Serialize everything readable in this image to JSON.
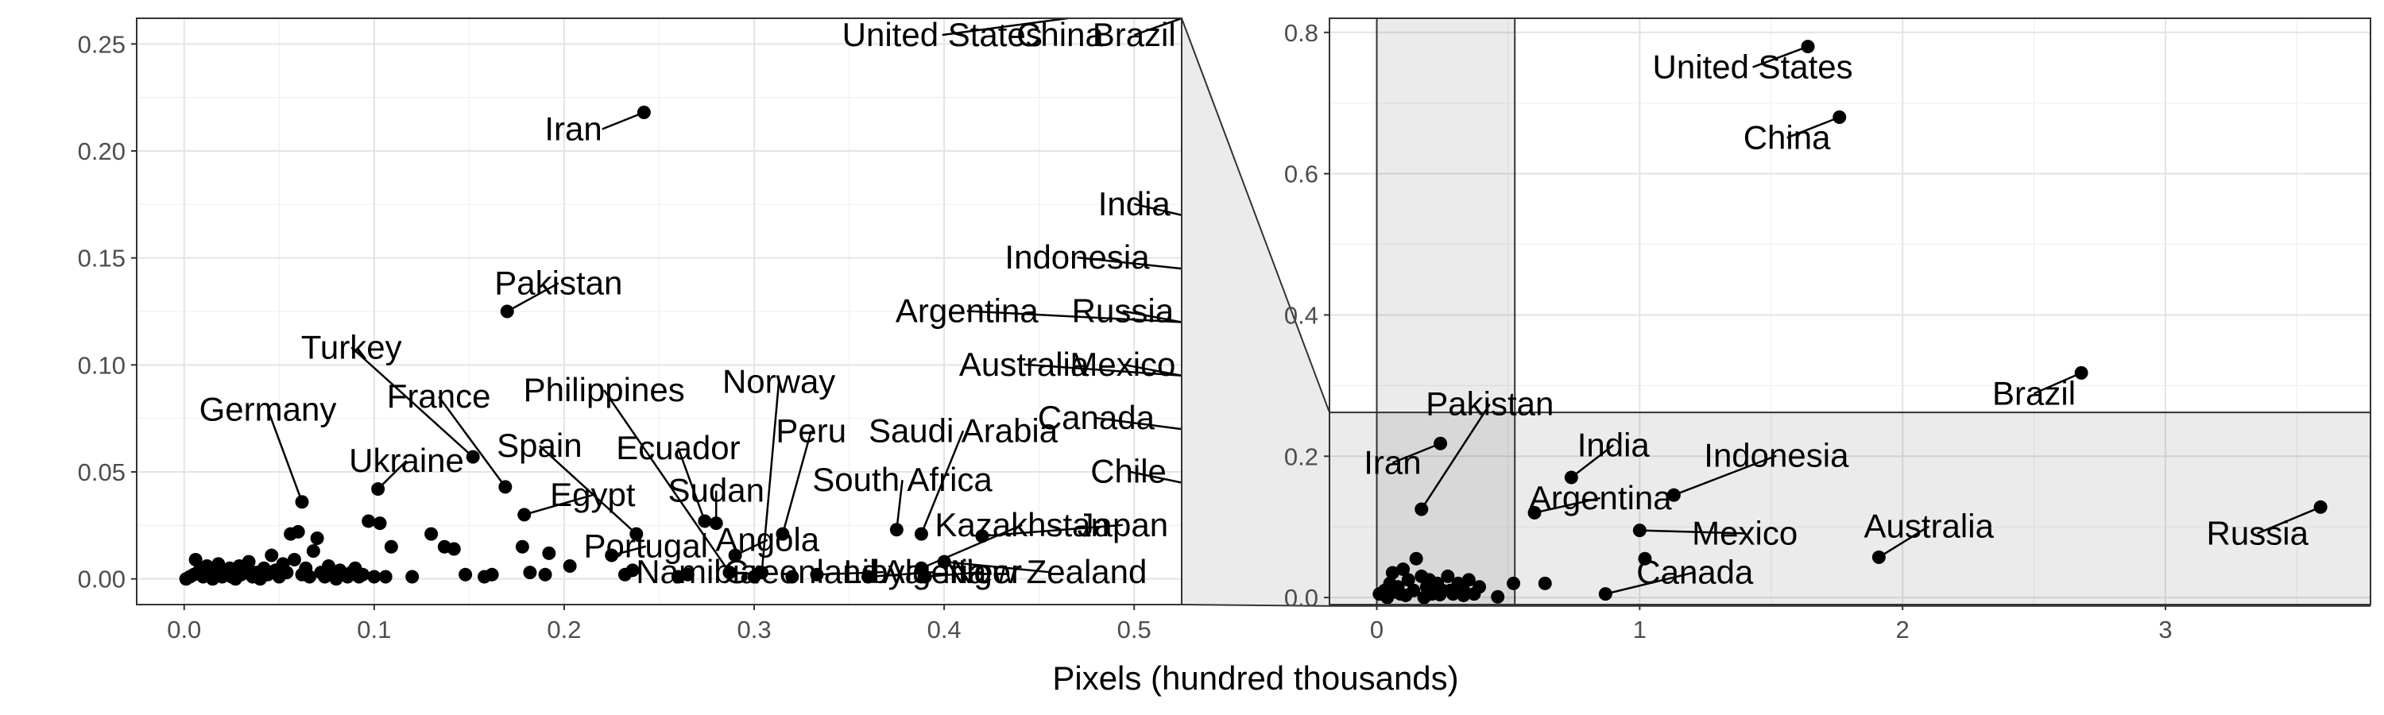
{
  "chart_data": [
    {
      "type": "scatter",
      "panel": "left (zoomed inset)",
      "title": "",
      "xlabel": "Pixels (hundred thousands)",
      "ylabel": "",
      "xlim": [
        -0.025,
        0.525
      ],
      "ylim": [
        -0.012,
        0.262
      ],
      "x_ticks": [
        "0.0",
        "0.1",
        "0.2",
        "0.3",
        "0.4",
        "0.5"
      ],
      "y_ticks": [
        "0.00",
        "0.05",
        "0.10",
        "0.15",
        "0.20",
        "0.25"
      ],
      "grid": true,
      "background": "#ffffff",
      "point_color": "#000000",
      "labeled_points": [
        {
          "label": "Iran",
          "x": 0.242,
          "y": 0.218,
          "tx": 0.22,
          "ty": 0.205,
          "anchor": "end"
        },
        {
          "label": "Pakistan",
          "x": 0.17,
          "y": 0.125,
          "tx": 0.197,
          "ty": 0.133,
          "anchor": "middle"
        },
        {
          "label": "Turkey",
          "x": 0.152,
          "y": 0.057,
          "tx": 0.088,
          "ty": 0.103,
          "anchor": "middle"
        },
        {
          "label": "France",
          "x": 0.169,
          "y": 0.043,
          "tx": 0.134,
          "ty": 0.08,
          "anchor": "middle"
        },
        {
          "label": "Germany",
          "x": 0.062,
          "y": 0.036,
          "tx": 0.044,
          "ty": 0.074,
          "anchor": "middle"
        },
        {
          "label": "Ukraine",
          "x": 0.102,
          "y": 0.042,
          "tx": 0.117,
          "ty": 0.05,
          "anchor": "middle"
        },
        {
          "label": "Spain",
          "x": 0.238,
          "y": 0.021,
          "tx": 0.187,
          "ty": 0.057,
          "anchor": "middle"
        },
        {
          "label": "Egypt",
          "x": 0.179,
          "y": 0.03,
          "tx": 0.215,
          "ty": 0.034,
          "anchor": "middle"
        },
        {
          "label": "Philippines",
          "x": 0.287,
          "y": 0.003,
          "tx": 0.221,
          "ty": 0.083,
          "anchor": "middle"
        },
        {
          "label": "Ecuador",
          "x": 0.274,
          "y": 0.027,
          "tx": 0.26,
          "ty": 0.056,
          "anchor": "middle"
        },
        {
          "label": "Sudan",
          "x": 0.28,
          "y": 0.026,
          "tx": 0.28,
          "ty": 0.036,
          "anchor": "middle"
        },
        {
          "label": "Norway",
          "x": 0.304,
          "y": 0.003,
          "tx": 0.313,
          "ty": 0.087,
          "anchor": "middle"
        },
        {
          "label": "Peru",
          "x": 0.315,
          "y": 0.021,
          "tx": 0.33,
          "ty": 0.064,
          "anchor": "middle"
        },
        {
          "label": "Saudi Arabia",
          "x": 0.388,
          "y": 0.021,
          "tx": 0.41,
          "ty": 0.064,
          "anchor": "middle"
        },
        {
          "label": "South Africa",
          "x": 0.375,
          "y": 0.023,
          "tx": 0.378,
          "ty": 0.041,
          "anchor": "middle"
        },
        {
          "label": "Portugal",
          "x": 0.225,
          "y": 0.011,
          "tx": 0.243,
          "ty": 0.01,
          "anchor": "middle"
        },
        {
          "label": "Angola",
          "x": 0.29,
          "y": 0.011,
          "tx": 0.307,
          "ty": 0.013,
          "anchor": "middle"
        },
        {
          "label": "Kazakhstan",
          "x": 0.388,
          "y": 0.005,
          "tx": 0.441,
          "ty": 0.02,
          "anchor": "middle"
        },
        {
          "label": "Japan",
          "x": 0.42,
          "y": 0.02,
          "tx": 0.494,
          "ty": 0.02,
          "anchor": "middle"
        },
        {
          "label": "Namibia",
          "x": 0.26,
          "y": 0.001,
          "tx": 0.27,
          "ty": -0.002,
          "anchor": "middle"
        },
        {
          "label": "Greenland",
          "x": 0.32,
          "y": 0.001,
          "tx": 0.325,
          "ty": -0.002,
          "anchor": "middle"
        },
        {
          "label": "Libya",
          "x": 0.333,
          "y": 0.002,
          "tx": 0.368,
          "ty": -0.002,
          "anchor": "middle"
        },
        {
          "label": "Algeria",
          "x": 0.36,
          "y": 0.001,
          "tx": 0.395,
          "ty": -0.002,
          "anchor": "middle"
        },
        {
          "label": "Niger",
          "x": 0.39,
          "y": 0.001,
          "tx": 0.42,
          "ty": -0.002,
          "anchor": "middle"
        },
        {
          "label": "New Zealand",
          "x": 0.4,
          "y": 0.008,
          "tx": 0.455,
          "ty": -0.002,
          "anchor": "middle"
        },
        {
          "label": "Chile",
          "x": 0.525,
          "y": 0.045,
          "tx": 0.497,
          "ty": 0.045,
          "anchor": "middle"
        },
        {
          "label": "Canada",
          "x": 0.525,
          "y": 0.07,
          "tx": 0.48,
          "ty": 0.07,
          "anchor": "middle"
        },
        {
          "label": "Australia",
          "x": 0.525,
          "y": 0.095,
          "tx": 0.442,
          "ty": 0.095,
          "anchor": "middle"
        },
        {
          "label": "Mexico",
          "x": 0.525,
          "y": 0.095,
          "tx": 0.494,
          "ty": 0.095,
          "anchor": "middle"
        },
        {
          "label": "Argentina",
          "x": 0.525,
          "y": 0.12,
          "tx": 0.412,
          "ty": 0.12,
          "anchor": "middle"
        },
        {
          "label": "Russia",
          "x": 0.525,
          "y": 0.12,
          "tx": 0.494,
          "ty": 0.12,
          "anchor": "middle"
        },
        {
          "label": "Indonesia",
          "x": 0.525,
          "y": 0.145,
          "tx": 0.47,
          "ty": 0.145,
          "anchor": "middle"
        },
        {
          "label": "India",
          "x": 0.525,
          "y": 0.17,
          "tx": 0.5,
          "ty": 0.17,
          "anchor": "middle"
        },
        {
          "label": "United States",
          "x": 0.465,
          "y": 0.262,
          "tx": 0.399,
          "ty": 0.249,
          "anchor": "middle"
        },
        {
          "label": "China",
          "x": 0.465,
          "y": 0.262,
          "tx": 0.461,
          "ty": 0.249,
          "anchor": "middle"
        },
        {
          "label": "Brazil",
          "x": 0.525,
          "y": 0.262,
          "tx": 0.5,
          "ty": 0.249,
          "anchor": "middle"
        }
      ],
      "other_points": [
        [
          0.001,
          0.0
        ],
        [
          0.003,
          0.001
        ],
        [
          0.005,
          0.002
        ],
        [
          0.006,
          0.009
        ],
        [
          0.008,
          0.004
        ],
        [
          0.01,
          0.001
        ],
        [
          0.012,
          0.006
        ],
        [
          0.013,
          0.002
        ],
        [
          0.015,
          0.0
        ],
        [
          0.017,
          0.004
        ],
        [
          0.018,
          0.007
        ],
        [
          0.02,
          0.001
        ],
        [
          0.022,
          0.003
        ],
        [
          0.024,
          0.005
        ],
        [
          0.025,
          0.001
        ],
        [
          0.027,
          0.0
        ],
        [
          0.029,
          0.006
        ],
        [
          0.03,
          0.002
        ],
        [
          0.032,
          0.004
        ],
        [
          0.034,
          0.008
        ],
        [
          0.036,
          0.001
        ],
        [
          0.038,
          0.003
        ],
        [
          0.04,
          0.0
        ],
        [
          0.042,
          0.005
        ],
        [
          0.044,
          0.002
        ],
        [
          0.046,
          0.011
        ],
        [
          0.048,
          0.004
        ],
        [
          0.05,
          0.001
        ],
        [
          0.052,
          0.007
        ],
        [
          0.054,
          0.003
        ],
        [
          0.056,
          0.021
        ],
        [
          0.058,
          0.009
        ],
        [
          0.06,
          0.022
        ],
        [
          0.062,
          0.002
        ],
        [
          0.064,
          0.005
        ],
        [
          0.066,
          0.001
        ],
        [
          0.068,
          0.013
        ],
        [
          0.07,
          0.019
        ],
        [
          0.072,
          0.003
        ],
        [
          0.074,
          0.001
        ],
        [
          0.076,
          0.006
        ],
        [
          0.078,
          0.002
        ],
        [
          0.08,
          0.0
        ],
        [
          0.082,
          0.004
        ],
        [
          0.084,
          0.002
        ],
        [
          0.086,
          0.001
        ],
        [
          0.088,
          0.003
        ],
        [
          0.09,
          0.005
        ],
        [
          0.092,
          0.001
        ],
        [
          0.094,
          0.002
        ],
        [
          0.097,
          0.027
        ],
        [
          0.1,
          0.001
        ],
        [
          0.103,
          0.026
        ],
        [
          0.106,
          0.001
        ],
        [
          0.109,
          0.015
        ],
        [
          0.12,
          0.001
        ],
        [
          0.13,
          0.021
        ],
        [
          0.137,
          0.015
        ],
        [
          0.142,
          0.014
        ],
        [
          0.148,
          0.002
        ],
        [
          0.158,
          0.001
        ],
        [
          0.162,
          0.002
        ],
        [
          0.178,
          0.015
        ],
        [
          0.182,
          0.003
        ],
        [
          0.19,
          0.002
        ],
        [
          0.192,
          0.012
        ],
        [
          0.203,
          0.006
        ],
        [
          0.232,
          0.002
        ],
        [
          0.236,
          0.004
        ],
        [
          0.265,
          0.002
        ],
        [
          0.3,
          0.001
        ]
      ]
    },
    {
      "type": "scatter",
      "panel": "right (full range)",
      "title": "",
      "xlabel": "",
      "ylabel": "",
      "xlim": [
        -0.18,
        3.78
      ],
      "ylim": [
        -0.01,
        0.82
      ],
      "x_ticks": [
        "0",
        "1",
        "2",
        "3"
      ],
      "y_ticks": [
        "0.0",
        "0.2",
        "0.4",
        "0.6",
        "0.8"
      ],
      "grid": true,
      "zoom_region": {
        "x": [
          0,
          0.525
        ],
        "y": [
          -0.012,
          0.262
        ]
      },
      "labeled_points": [
        {
          "label": "United States",
          "x": 1.64,
          "y": 0.78,
          "tx": 1.43,
          "ty": 0.735,
          "anchor": "middle"
        },
        {
          "label": "China",
          "x": 1.76,
          "y": 0.68,
          "tx": 1.56,
          "ty": 0.635,
          "anchor": "middle"
        },
        {
          "label": "Brazil",
          "x": 2.68,
          "y": 0.318,
          "tx": 2.5,
          "ty": 0.273,
          "anchor": "middle"
        },
        {
          "label": "Pakistan",
          "x": 0.17,
          "y": 0.125,
          "tx": 0.43,
          "ty": 0.258,
          "anchor": "middle"
        },
        {
          "label": "Iran",
          "x": 0.242,
          "y": 0.218,
          "tx": 0.06,
          "ty": 0.175,
          "anchor": "middle"
        },
        {
          "label": "India",
          "x": 0.74,
          "y": 0.17,
          "tx": 0.9,
          "ty": 0.2,
          "anchor": "middle"
        },
        {
          "label": "Indonesia",
          "x": 1.13,
          "y": 0.145,
          "tx": 1.52,
          "ty": 0.185,
          "anchor": "middle"
        },
        {
          "label": "Argentina",
          "x": 0.6,
          "y": 0.12,
          "tx": 0.85,
          "ty": 0.125,
          "anchor": "middle"
        },
        {
          "label": "Mexico",
          "x": 1.0,
          "y": 0.095,
          "tx": 1.4,
          "ty": 0.075,
          "anchor": "middle"
        },
        {
          "label": "Australia",
          "x": 1.91,
          "y": 0.057,
          "tx": 2.1,
          "ty": 0.085,
          "anchor": "middle"
        },
        {
          "label": "Russia",
          "x": 3.59,
          "y": 0.128,
          "tx": 3.35,
          "ty": 0.075,
          "anchor": "middle"
        },
        {
          "label": "Canada",
          "x": 0.87,
          "y": 0.005,
          "tx": 1.21,
          "ty": 0.02,
          "anchor": "middle"
        }
      ],
      "other_points": [
        [
          1.02,
          0.055
        ],
        [
          0.64,
          0.02
        ],
        [
          0.52,
          0.02
        ],
        [
          0.46,
          0.001
        ],
        [
          0.01,
          0.005
        ],
        [
          0.03,
          0.01
        ],
        [
          0.05,
          0.02
        ],
        [
          0.06,
          0.035
        ],
        [
          0.08,
          0.015
        ],
        [
          0.1,
          0.04
        ],
        [
          0.12,
          0.025
        ],
        [
          0.14,
          0.01
        ],
        [
          0.15,
          0.055
        ],
        [
          0.17,
          0.03
        ],
        [
          0.19,
          0.015
        ],
        [
          0.21,
          0.005
        ],
        [
          0.23,
          0.02
        ],
        [
          0.25,
          0.01
        ],
        [
          0.27,
          0.03
        ],
        [
          0.29,
          0.005
        ],
        [
          0.31,
          0.02
        ],
        [
          0.33,
          0.01
        ],
        [
          0.35,
          0.025
        ],
        [
          0.37,
          0.005
        ],
        [
          0.39,
          0.015
        ],
        [
          0.04,
          0.0
        ],
        [
          0.09,
          0.005
        ],
        [
          0.18,
          0.0
        ],
        [
          0.28,
          0.01
        ],
        [
          0.2,
          0.025
        ],
        [
          0.07,
          0.008
        ],
        [
          0.11,
          0.003
        ],
        [
          0.24,
          0.004
        ],
        [
          0.33,
          0.003
        ]
      ]
    }
  ]
}
